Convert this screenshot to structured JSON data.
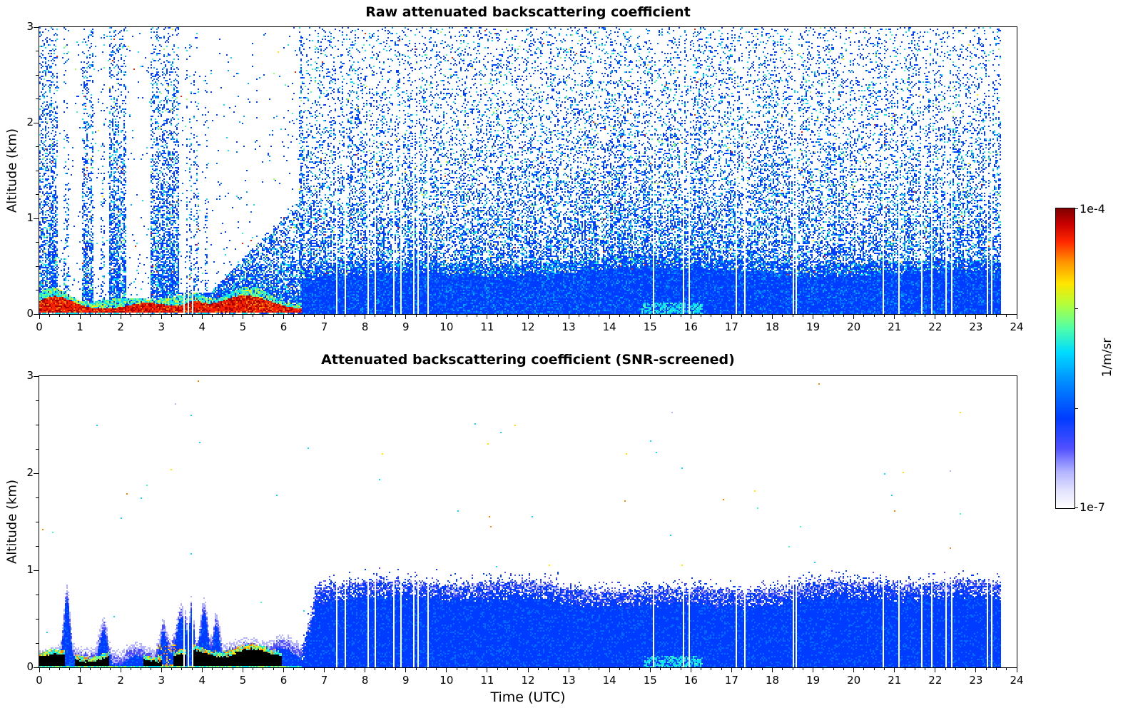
{
  "chart_data": {
    "type": "heatmap",
    "xlabel": "Time (UTC)",
    "x_range": [
      0,
      24
    ],
    "x_ticks": [
      0,
      1,
      2,
      3,
      4,
      5,
      6,
      7,
      8,
      9,
      10,
      11,
      12,
      13,
      14,
      15,
      16,
      17,
      18,
      19,
      20,
      21,
      22,
      23,
      24
    ],
    "data_end_time": 23.62,
    "panels": [
      {
        "id": "raw",
        "title": "Raw attenuated backscattering coefficient",
        "ylabel": "Altitude (km)",
        "y_range": [
          0,
          3
        ],
        "y_ticks": [
          0,
          1,
          2,
          3
        ],
        "description": "Strong surface aerosol layer (red, ~1e-4 1/m/sr) below ~0.25 km from 0 to 6.5 UTC topped by a cyan-green transition band; white attenuation gaps above low clouds near 0.45-1.05, 1.33-1.72, 2.12-2.72 and 3.45-6.38 UTC; after 6.5 UTC a solid blue boundary layer below ~0.35-0.5 km with blue/cyan noise speckle filling the column up to 3 km; thin white vertical stripes are missing profiles; no data after ~23.6 UTC."
      },
      {
        "id": "screened",
        "title": "Attenuated backscattering coefficient (SNR-screened)",
        "ylabel": "Altitude (km)",
        "y_range": [
          0,
          3
        ],
        "y_ticks": [
          0,
          1,
          2,
          3
        ],
        "description": "Noise-screened field: saturated black returns below ~0.2 km before 6 UTC fringed by cyan/green/yellow pixels, blue aerosol plumes reaching 0.6-0.95 km near 0.7, 1.6 and 3.5-4.4 UTC, and a continuous blue boundary layer up to ~0.8-0.9 km from ~6.6 to 23.6 UTC with a pale dithered upper edge; isolated cyan/orange specks in the clear air above."
      }
    ],
    "colorbar": {
      "max_label": "1e-4",
      "min_label": "1e-7",
      "unit_label": "1/m/sr",
      "scale": "log",
      "stops": [
        {
          "u": 0.0,
          "c": "#ffffff"
        },
        {
          "u": 0.06,
          "c": "#e1e1ff"
        },
        {
          "u": 0.12,
          "c": "#b4b4ff"
        },
        {
          "u": 0.2,
          "c": "#5050ff"
        },
        {
          "u": 0.3,
          "c": "#003cff"
        },
        {
          "u": 0.42,
          "c": "#008cff"
        },
        {
          "u": 0.52,
          "c": "#00dcff"
        },
        {
          "u": 0.6,
          "c": "#50ffaa"
        },
        {
          "u": 0.68,
          "c": "#b4ff3c"
        },
        {
          "u": 0.75,
          "c": "#ffe600"
        },
        {
          "u": 0.82,
          "c": "#ff9600"
        },
        {
          "u": 0.89,
          "c": "#ff2800"
        },
        {
          "u": 0.95,
          "c": "#c80000"
        },
        {
          "u": 1.0,
          "c": "#800000"
        }
      ]
    },
    "missing_profile_times": [
      3.55,
      3.66,
      3.78,
      7.3,
      7.5,
      8.08,
      8.26,
      8.7,
      8.87,
      9.18,
      9.3,
      9.56,
      15.08,
      15.82,
      15.96,
      17.1,
      17.34,
      18.5,
      18.6,
      20.74,
      21.1,
      21.68,
      21.9,
      22.28,
      22.42,
      23.28,
      23.38
    ],
    "raw_panel_model": {
      "morning_end": 6.45,
      "cloud_gaps": [
        [
          0.45,
          1.05
        ],
        [
          1.33,
          1.72
        ],
        [
          2.12,
          2.72
        ],
        [
          3.45,
          6.38
        ]
      ],
      "gap_plumes": [
        {
          "t": 0.67,
          "w": 0.06
        },
        {
          "t": 1.55,
          "w": 0.05
        },
        {
          "t": 3.78,
          "w": 0.16
        },
        {
          "t": 4.1,
          "w": 0.05
        }
      ],
      "afternoon_layer_top_km": [
        0.32,
        0.5
      ]
    },
    "screened_panel_model": {
      "black_intervals": [
        [
          0.0,
          0.62
        ],
        [
          0.88,
          1.7
        ],
        [
          2.55,
          3.02
        ],
        [
          3.3,
          3.62
        ],
        [
          3.8,
          5.95
        ]
      ],
      "plume_peaks": [
        {
          "t": 0.68,
          "h": 0.62,
          "w": 0.1
        },
        {
          "t": 1.58,
          "h": 0.33,
          "w": 0.13
        },
        {
          "t": 2.35,
          "h": 0.1,
          "w": 0.25
        },
        {
          "t": 3.05,
          "h": 0.3,
          "w": 0.12
        },
        {
          "t": 3.5,
          "h": 0.45,
          "w": 0.18
        },
        {
          "t": 3.75,
          "h": 0.45,
          "w": 0.07
        },
        {
          "t": 4.05,
          "h": 0.5,
          "w": 0.12
        },
        {
          "t": 4.35,
          "h": 0.35,
          "w": 0.1
        },
        {
          "t": 5.1,
          "h": 0.15,
          "w": 0.6
        },
        {
          "t": 6.0,
          "h": 0.12,
          "w": 0.3
        }
      ],
      "layer_top_km": [
        0.75,
        0.9
      ],
      "cyan_streak_interval": [
        14.85,
        16.3
      ]
    }
  }
}
